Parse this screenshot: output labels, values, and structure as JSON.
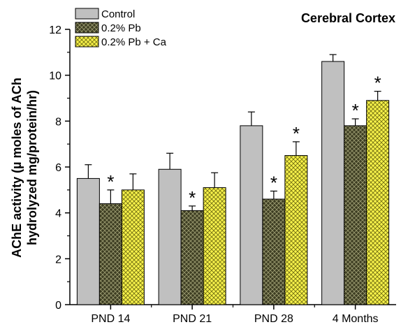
{
  "chart_data": {
    "type": "bar",
    "title": "Cerebral Cortex",
    "ylabel_line1": "AChE activity (µ moles of ACh",
    "ylabel_line2": "hydrolyzed mg/protein/hr)",
    "xlabel": "",
    "categories": [
      "PND 14",
      "PND 21",
      "PND 28",
      "4 Months"
    ],
    "ylim": [
      0,
      12
    ],
    "yticks": [
      "0",
      "2",
      "4",
      "6",
      "8",
      "10",
      "12"
    ],
    "series": [
      {
        "name": "Control",
        "values": [
          5.5,
          5.9,
          7.8,
          10.6
        ],
        "errors": [
          0.6,
          0.7,
          0.6,
          0.3
        ],
        "significant": [
          false,
          false,
          false,
          false
        ],
        "fill": "#c0c0c0",
        "pattern": "none"
      },
      {
        "name": "0.2% Pb",
        "values": [
          4.4,
          4.1,
          4.6,
          7.8
        ],
        "errors": [
          0.6,
          0.2,
          0.35,
          0.3
        ],
        "significant": [
          true,
          true,
          true,
          true
        ],
        "fill": "#3d3d22",
        "pattern": "crosshatch-light-lines"
      },
      {
        "name": "0.2% Pb + Ca",
        "values": [
          5.0,
          5.1,
          6.5,
          8.9
        ],
        "errors": [
          0.7,
          0.65,
          0.6,
          0.4
        ],
        "significant": [
          false,
          false,
          true,
          true
        ],
        "fill": "#f7f24a",
        "pattern": "crosshatch-dark-lines"
      }
    ],
    "significance_marker": "*",
    "legend_position": "top-left",
    "grid": false
  }
}
